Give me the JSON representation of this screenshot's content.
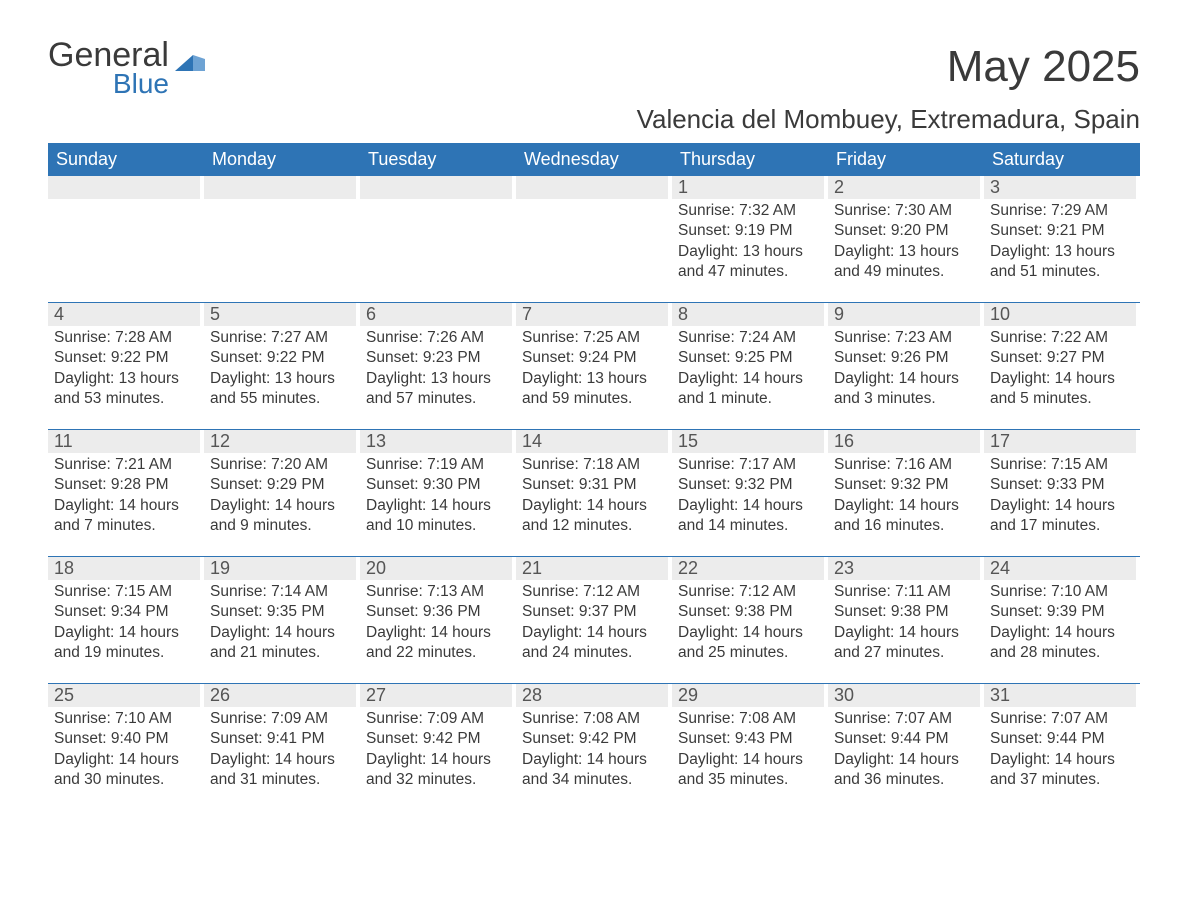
{
  "logo": {
    "word1": "General",
    "word2": "Blue",
    "tri_color": "#2e74b5"
  },
  "title": "May 2025",
  "location": "Valencia del Mombuey, Extremadura, Spain",
  "colors": {
    "header_bg": "#2e74b5",
    "header_text": "#ffffff",
    "daynum_bg": "#ececec",
    "text": "#3a3a3a",
    "rule": "#2e74b5"
  },
  "day_headers": [
    "Sunday",
    "Monday",
    "Tuesday",
    "Wednesday",
    "Thursday",
    "Friday",
    "Saturday"
  ],
  "weeks": [
    [
      null,
      null,
      null,
      null,
      {
        "n": "1",
        "sunrise": "7:32 AM",
        "sunset": "9:19 PM",
        "daylight": "13 hours and 47 minutes."
      },
      {
        "n": "2",
        "sunrise": "7:30 AM",
        "sunset": "9:20 PM",
        "daylight": "13 hours and 49 minutes."
      },
      {
        "n": "3",
        "sunrise": "7:29 AM",
        "sunset": "9:21 PM",
        "daylight": "13 hours and 51 minutes."
      }
    ],
    [
      {
        "n": "4",
        "sunrise": "7:28 AM",
        "sunset": "9:22 PM",
        "daylight": "13 hours and 53 minutes."
      },
      {
        "n": "5",
        "sunrise": "7:27 AM",
        "sunset": "9:22 PM",
        "daylight": "13 hours and 55 minutes."
      },
      {
        "n": "6",
        "sunrise": "7:26 AM",
        "sunset": "9:23 PM",
        "daylight": "13 hours and 57 minutes."
      },
      {
        "n": "7",
        "sunrise": "7:25 AM",
        "sunset": "9:24 PM",
        "daylight": "13 hours and 59 minutes."
      },
      {
        "n": "8",
        "sunrise": "7:24 AM",
        "sunset": "9:25 PM",
        "daylight": "14 hours and 1 minute."
      },
      {
        "n": "9",
        "sunrise": "7:23 AM",
        "sunset": "9:26 PM",
        "daylight": "14 hours and 3 minutes."
      },
      {
        "n": "10",
        "sunrise": "7:22 AM",
        "sunset": "9:27 PM",
        "daylight": "14 hours and 5 minutes."
      }
    ],
    [
      {
        "n": "11",
        "sunrise": "7:21 AM",
        "sunset": "9:28 PM",
        "daylight": "14 hours and 7 minutes."
      },
      {
        "n": "12",
        "sunrise": "7:20 AM",
        "sunset": "9:29 PM",
        "daylight": "14 hours and 9 minutes."
      },
      {
        "n": "13",
        "sunrise": "7:19 AM",
        "sunset": "9:30 PM",
        "daylight": "14 hours and 10 minutes."
      },
      {
        "n": "14",
        "sunrise": "7:18 AM",
        "sunset": "9:31 PM",
        "daylight": "14 hours and 12 minutes."
      },
      {
        "n": "15",
        "sunrise": "7:17 AM",
        "sunset": "9:32 PM",
        "daylight": "14 hours and 14 minutes."
      },
      {
        "n": "16",
        "sunrise": "7:16 AM",
        "sunset": "9:32 PM",
        "daylight": "14 hours and 16 minutes."
      },
      {
        "n": "17",
        "sunrise": "7:15 AM",
        "sunset": "9:33 PM",
        "daylight": "14 hours and 17 minutes."
      }
    ],
    [
      {
        "n": "18",
        "sunrise": "7:15 AM",
        "sunset": "9:34 PM",
        "daylight": "14 hours and 19 minutes."
      },
      {
        "n": "19",
        "sunrise": "7:14 AM",
        "sunset": "9:35 PM",
        "daylight": "14 hours and 21 minutes."
      },
      {
        "n": "20",
        "sunrise": "7:13 AM",
        "sunset": "9:36 PM",
        "daylight": "14 hours and 22 minutes."
      },
      {
        "n": "21",
        "sunrise": "7:12 AM",
        "sunset": "9:37 PM",
        "daylight": "14 hours and 24 minutes."
      },
      {
        "n": "22",
        "sunrise": "7:12 AM",
        "sunset": "9:38 PM",
        "daylight": "14 hours and 25 minutes."
      },
      {
        "n": "23",
        "sunrise": "7:11 AM",
        "sunset": "9:38 PM",
        "daylight": "14 hours and 27 minutes."
      },
      {
        "n": "24",
        "sunrise": "7:10 AM",
        "sunset": "9:39 PM",
        "daylight": "14 hours and 28 minutes."
      }
    ],
    [
      {
        "n": "25",
        "sunrise": "7:10 AM",
        "sunset": "9:40 PM",
        "daylight": "14 hours and 30 minutes."
      },
      {
        "n": "26",
        "sunrise": "7:09 AM",
        "sunset": "9:41 PM",
        "daylight": "14 hours and 31 minutes."
      },
      {
        "n": "27",
        "sunrise": "7:09 AM",
        "sunset": "9:42 PM",
        "daylight": "14 hours and 32 minutes."
      },
      {
        "n": "28",
        "sunrise": "7:08 AM",
        "sunset": "9:42 PM",
        "daylight": "14 hours and 34 minutes."
      },
      {
        "n": "29",
        "sunrise": "7:08 AM",
        "sunset": "9:43 PM",
        "daylight": "14 hours and 35 minutes."
      },
      {
        "n": "30",
        "sunrise": "7:07 AM",
        "sunset": "9:44 PM",
        "daylight": "14 hours and 36 minutes."
      },
      {
        "n": "31",
        "sunrise": "7:07 AM",
        "sunset": "9:44 PM",
        "daylight": "14 hours and 37 minutes."
      }
    ]
  ],
  "labels": {
    "sunrise": "Sunrise:",
    "sunset": "Sunset:",
    "daylight": "Daylight:"
  }
}
